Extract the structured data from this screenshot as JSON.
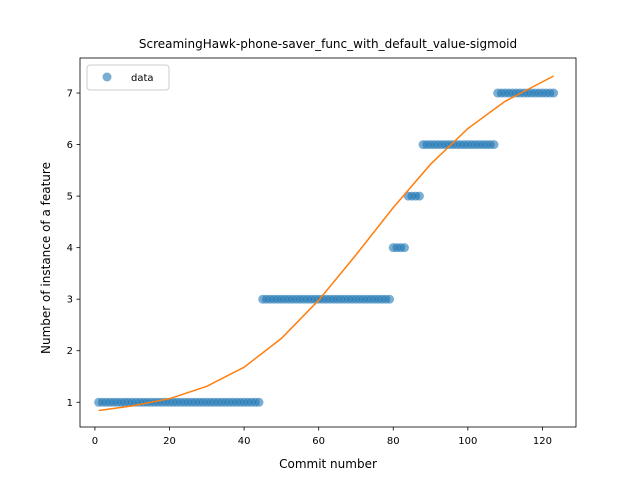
{
  "chart_data": {
    "type": "scatter",
    "title": "ScreamingHawk-phone-saver_func_with_default_value-sigmoid",
    "xlabel": "Commit number",
    "ylabel": "Number of instance of a feature",
    "xlim": [
      -4,
      129
    ],
    "ylim": [
      0.52,
      7.68
    ],
    "xticks": [
      0,
      20,
      40,
      60,
      80,
      100,
      120
    ],
    "yticks": [
      1,
      2,
      3,
      4,
      5,
      6,
      7
    ],
    "grid": false,
    "legend": {
      "position": "upper-left",
      "entries": [
        "data"
      ]
    },
    "colors": {
      "data": "#1f77b4",
      "fit": "#ff7f0e"
    },
    "series": [
      {
        "name": "data",
        "kind": "scatter",
        "points": [
          [
            1,
            1
          ],
          [
            2,
            1
          ],
          [
            3,
            1
          ],
          [
            4,
            1
          ],
          [
            5,
            1
          ],
          [
            6,
            1
          ],
          [
            7,
            1
          ],
          [
            8,
            1
          ],
          [
            9,
            1
          ],
          [
            10,
            1
          ],
          [
            11,
            1
          ],
          [
            12,
            1
          ],
          [
            13,
            1
          ],
          [
            14,
            1
          ],
          [
            15,
            1
          ],
          [
            16,
            1
          ],
          [
            17,
            1
          ],
          [
            18,
            1
          ],
          [
            19,
            1
          ],
          [
            20,
            1
          ],
          [
            21,
            1
          ],
          [
            22,
            1
          ],
          [
            23,
            1
          ],
          [
            24,
            1
          ],
          [
            25,
            1
          ],
          [
            26,
            1
          ],
          [
            27,
            1
          ],
          [
            28,
            1
          ],
          [
            29,
            1
          ],
          [
            30,
            1
          ],
          [
            31,
            1
          ],
          [
            32,
            1
          ],
          [
            33,
            1
          ],
          [
            34,
            1
          ],
          [
            35,
            1
          ],
          [
            36,
            1
          ],
          [
            37,
            1
          ],
          [
            38,
            1
          ],
          [
            39,
            1
          ],
          [
            40,
            1
          ],
          [
            41,
            1
          ],
          [
            42,
            1
          ],
          [
            43,
            1
          ],
          [
            44,
            1
          ],
          [
            45,
            3
          ],
          [
            46,
            3
          ],
          [
            47,
            3
          ],
          [
            48,
            3
          ],
          [
            49,
            3
          ],
          [
            50,
            3
          ],
          [
            51,
            3
          ],
          [
            52,
            3
          ],
          [
            53,
            3
          ],
          [
            54,
            3
          ],
          [
            55,
            3
          ],
          [
            56,
            3
          ],
          [
            57,
            3
          ],
          [
            58,
            3
          ],
          [
            59,
            3
          ],
          [
            60,
            3
          ],
          [
            61,
            3
          ],
          [
            62,
            3
          ],
          [
            63,
            3
          ],
          [
            64,
            3
          ],
          [
            65,
            3
          ],
          [
            66,
            3
          ],
          [
            67,
            3
          ],
          [
            68,
            3
          ],
          [
            69,
            3
          ],
          [
            70,
            3
          ],
          [
            71,
            3
          ],
          [
            72,
            3
          ],
          [
            73,
            3
          ],
          [
            74,
            3
          ],
          [
            75,
            3
          ],
          [
            76,
            3
          ],
          [
            77,
            3
          ],
          [
            78,
            3
          ],
          [
            79,
            3
          ],
          [
            80,
            4
          ],
          [
            81,
            4
          ],
          [
            82,
            4
          ],
          [
            83,
            4
          ],
          [
            84,
            5
          ],
          [
            85,
            5
          ],
          [
            86,
            5
          ],
          [
            87,
            5
          ],
          [
            88,
            6
          ],
          [
            89,
            6
          ],
          [
            90,
            6
          ],
          [
            91,
            6
          ],
          [
            92,
            6
          ],
          [
            93,
            6
          ],
          [
            94,
            6
          ],
          [
            95,
            6
          ],
          [
            96,
            6
          ],
          [
            97,
            6
          ],
          [
            98,
            6
          ],
          [
            99,
            6
          ],
          [
            100,
            6
          ],
          [
            101,
            6
          ],
          [
            102,
            6
          ],
          [
            103,
            6
          ],
          [
            104,
            6
          ],
          [
            105,
            6
          ],
          [
            106,
            6
          ],
          [
            107,
            6
          ],
          [
            108,
            7
          ],
          [
            109,
            7
          ],
          [
            110,
            7
          ],
          [
            111,
            7
          ],
          [
            112,
            7
          ],
          [
            113,
            7
          ],
          [
            114,
            7
          ],
          [
            115,
            7
          ],
          [
            116,
            7
          ],
          [
            117,
            7
          ],
          [
            118,
            7
          ],
          [
            119,
            7
          ],
          [
            120,
            7
          ],
          [
            121,
            7
          ],
          [
            122,
            7
          ],
          [
            123,
            7
          ]
        ]
      },
      {
        "kind": "line",
        "x": [
          1,
          10,
          20,
          30,
          40,
          50,
          60,
          70,
          80,
          90,
          100,
          110,
          123
        ],
        "y": [
          0.84,
          0.93,
          1.07,
          1.31,
          1.68,
          2.24,
          2.98,
          3.86,
          4.78,
          5.62,
          6.31,
          6.84,
          7.33
        ]
      }
    ]
  }
}
